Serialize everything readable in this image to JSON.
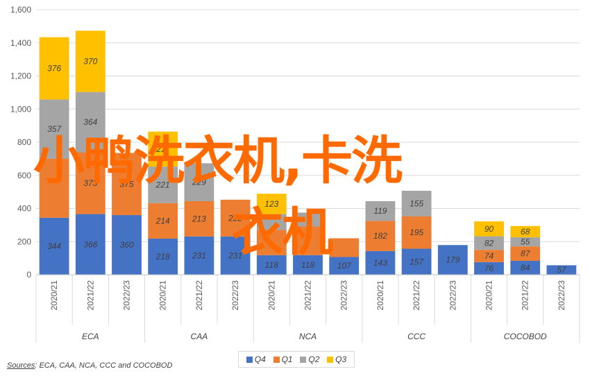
{
  "chart_data": {
    "type": "bar",
    "stacked": true,
    "title": "",
    "xlabel": "",
    "ylabel": "",
    "ylim": [
      0,
      1600
    ],
    "yticks": [
      "0",
      "200",
      "400",
      "600",
      "800",
      "1,000",
      "1,200",
      "1,400",
      "1,600"
    ],
    "ytick_values": [
      0,
      200,
      400,
      600,
      800,
      1000,
      1200,
      1400,
      1600
    ],
    "grid": true,
    "legend_position": "bottom",
    "groups": [
      {
        "name": "ECA",
        "categories": [
          "2020/21",
          "2021/22",
          "2022/23"
        ]
      },
      {
        "name": "CAA",
        "categories": [
          "2020/21",
          "2021/22",
          "2022/23"
        ]
      },
      {
        "name": "NCA",
        "categories": [
          "2020/21",
          "2021/22",
          "2022/23"
        ]
      },
      {
        "name": "CCC",
        "categories": [
          "2020/21",
          "2021/22",
          "2022/23"
        ]
      },
      {
        "name": "COCOBOD",
        "categories": [
          "2020/21",
          "2021/22",
          "2022/23"
        ]
      }
    ],
    "series": [
      {
        "name": "Q4",
        "color": "#4472c4",
        "values": [
          344,
          366,
          360,
          218,
          231,
          231,
          118,
          118,
          107,
          143,
          157,
          179,
          76,
          84,
          57
        ]
      },
      {
        "name": "Q1",
        "color": "#ed7d31",
        "values": [
          357,
          373,
          375,
          214,
          213,
          222,
          152,
          173,
          113,
          182,
          195,
          0,
          74,
          87,
          0
        ]
      },
      {
        "name": "Q2",
        "color": "#a5a5a5",
        "values": [
          357,
          364,
          0,
          221,
          229,
          0,
          96,
          84,
          0,
          119,
          155,
          0,
          82,
          55,
          0
        ]
      },
      {
        "name": "Q3",
        "color": "#ffc000",
        "values": [
          376,
          370,
          0,
          211,
          0,
          0,
          123,
          0,
          0,
          0,
          0,
          0,
          90,
          68,
          0
        ]
      }
    ],
    "data_labels": [
      [
        "344",
        "366",
        "360",
        "218",
        "231",
        "231",
        "118",
        "118",
        "107",
        "143",
        "157",
        "179",
        "76",
        "84",
        "57"
      ],
      [
        "",
        "373",
        "375",
        "214",
        "213",
        "222",
        "",
        "",
        "",
        "182",
        "195",
        "",
        "74",
        "87",
        ""
      ],
      [
        "357",
        "364",
        "",
        "221",
        "229",
        "",
        "",
        "",
        "",
        "119",
        "155",
        "",
        "82",
        "55",
        ""
      ],
      [
        "376",
        "370",
        "",
        "211",
        "",
        "",
        "123",
        "",
        "",
        "",
        "",
        "",
        "90",
        "68",
        ""
      ]
    ]
  },
  "source": {
    "label": "Sources",
    "text": ": ECA, CAA, NCA, CCC and COCOBOD"
  },
  "watermark": {
    "line1": "小鸭洗衣机,卡洗",
    "line2": "衣机",
    "color": "#ff6a00"
  }
}
